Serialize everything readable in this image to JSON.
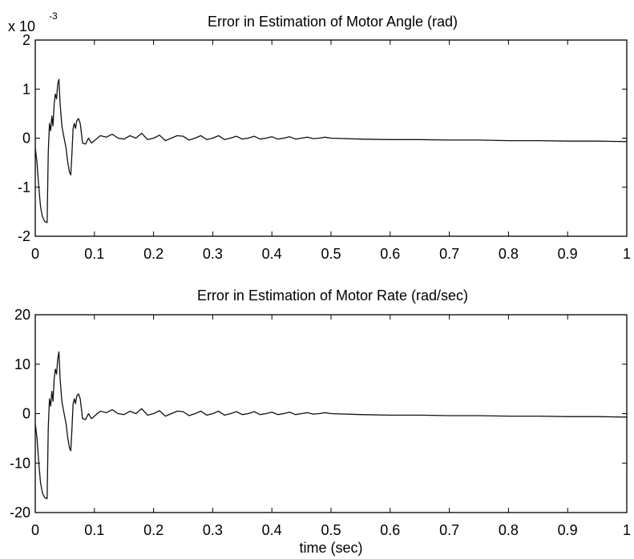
{
  "chart_data": [
    {
      "type": "line",
      "title": "Error in Estimation of Motor Angle (rad)",
      "xlabel": "",
      "ylabel": "",
      "y_multiplier": {
        "base": "x 10",
        "exponent": "-3"
      },
      "xlim": [
        0,
        1
      ],
      "ylim": [
        -2,
        2
      ],
      "xticks": [
        "0",
        "0.1",
        "0.2",
        "0.3",
        "0.4",
        "0.5",
        "0.6",
        "0.7",
        "0.8",
        "0.9",
        "1"
      ],
      "yticks": [
        "-2",
        "-1",
        "0",
        "1",
        "2"
      ],
      "grid": false,
      "series": [
        {
          "x": [
            0,
            0.003,
            0.006,
            0.009,
            0.012,
            0.016,
            0.02,
            0.022,
            0.024,
            0.026,
            0.028,
            0.03,
            0.032,
            0.034,
            0.036,
            0.038,
            0.04,
            0.042,
            0.045,
            0.048,
            0.052,
            0.055,
            0.058,
            0.06,
            0.062,
            0.064,
            0.066,
            0.068,
            0.07,
            0.073,
            0.076,
            0.08,
            0.085,
            0.09,
            0.095,
            0.1,
            0.11,
            0.12,
            0.13,
            0.14,
            0.15,
            0.16,
            0.17,
            0.18,
            0.19,
            0.2,
            0.21,
            0.22,
            0.23,
            0.24,
            0.25,
            0.26,
            0.27,
            0.28,
            0.29,
            0.3,
            0.31,
            0.32,
            0.33,
            0.34,
            0.35,
            0.36,
            0.37,
            0.38,
            0.39,
            0.4,
            0.41,
            0.42,
            0.43,
            0.44,
            0.45,
            0.46,
            0.47,
            0.48,
            0.49,
            0.5,
            0.55,
            0.6,
            0.65,
            0.7,
            0.75,
            0.8,
            0.85,
            0.9,
            0.95,
            1.0
          ],
          "y": [
            -0.2,
            -0.5,
            -1.0,
            -1.4,
            -1.6,
            -1.7,
            -1.72,
            -0.3,
            0.3,
            0.15,
            0.45,
            0.25,
            0.7,
            0.9,
            0.8,
            1.1,
            1.2,
            0.7,
            0.25,
            0.05,
            -0.2,
            -0.5,
            -0.7,
            -0.75,
            -0.3,
            0.2,
            0.3,
            0.2,
            0.35,
            0.4,
            0.3,
            -0.1,
            -0.12,
            0.0,
            -0.1,
            -0.05,
            0.05,
            0.02,
            0.08,
            0.0,
            -0.02,
            0.05,
            0.0,
            0.1,
            -0.03,
            0.0,
            0.06,
            -0.05,
            0.0,
            0.05,
            0.04,
            -0.04,
            0.0,
            0.05,
            -0.03,
            0.0,
            0.05,
            -0.03,
            0.0,
            0.04,
            -0.02,
            0.0,
            0.04,
            -0.02,
            0.0,
            0.03,
            -0.02,
            0.0,
            0.03,
            -0.02,
            0.0,
            0.02,
            -0.01,
            0.0,
            0.02,
            0.0,
            -0.02,
            -0.03,
            -0.03,
            -0.04,
            -0.04,
            -0.05,
            -0.05,
            -0.06,
            -0.06,
            -0.07
          ]
        }
      ]
    },
    {
      "type": "line",
      "title": "Error in Estimation of Motor Rate (rad/sec)",
      "xlabel": "time (sec)",
      "ylabel": "",
      "xlim": [
        0,
        1
      ],
      "ylim": [
        -20,
        20
      ],
      "xticks": [
        "0",
        "0.1",
        "0.2",
        "0.3",
        "0.4",
        "0.5",
        "0.6",
        "0.7",
        "0.8",
        "0.9",
        "1"
      ],
      "yticks": [
        "-20",
        "-10",
        "0",
        "10",
        "20"
      ],
      "grid": false,
      "series": [
        {
          "x": [
            0,
            0.003,
            0.006,
            0.009,
            0.012,
            0.016,
            0.02,
            0.022,
            0.024,
            0.026,
            0.028,
            0.03,
            0.032,
            0.034,
            0.036,
            0.038,
            0.04,
            0.042,
            0.045,
            0.048,
            0.052,
            0.055,
            0.058,
            0.06,
            0.062,
            0.064,
            0.066,
            0.068,
            0.07,
            0.073,
            0.076,
            0.08,
            0.085,
            0.09,
            0.095,
            0.1,
            0.11,
            0.12,
            0.13,
            0.14,
            0.15,
            0.16,
            0.17,
            0.18,
            0.19,
            0.2,
            0.21,
            0.22,
            0.23,
            0.24,
            0.25,
            0.26,
            0.27,
            0.28,
            0.29,
            0.3,
            0.31,
            0.32,
            0.33,
            0.34,
            0.35,
            0.36,
            0.37,
            0.38,
            0.39,
            0.4,
            0.41,
            0.42,
            0.43,
            0.44,
            0.45,
            0.46,
            0.47,
            0.48,
            0.49,
            0.5,
            0.55,
            0.6,
            0.65,
            0.7,
            0.75,
            0.8,
            0.85,
            0.9,
            0.95,
            1.0
          ],
          "y": [
            -2,
            -5,
            -10,
            -14,
            -16,
            -17,
            -17.2,
            -3,
            3,
            1.5,
            4.5,
            2.5,
            7,
            9,
            8,
            11,
            12.5,
            7,
            2.5,
            0.5,
            -2,
            -5,
            -7,
            -7.5,
            -3,
            2,
            3,
            2,
            3.5,
            4,
            3,
            -1,
            -1.2,
            0,
            -1,
            -0.5,
            0.5,
            0.2,
            0.8,
            0,
            -0.2,
            0.5,
            0,
            1,
            -0.3,
            0,
            0.6,
            -0.5,
            0,
            0.5,
            0.4,
            -0.4,
            0,
            0.5,
            -0.3,
            0,
            0.5,
            -0.3,
            0,
            0.4,
            -0.2,
            0,
            0.4,
            -0.2,
            0,
            0.3,
            -0.2,
            0,
            0.3,
            -0.2,
            0,
            0.2,
            -0.1,
            0,
            0.2,
            0,
            -0.2,
            -0.3,
            -0.3,
            -0.4,
            -0.4,
            -0.5,
            -0.5,
            -0.6,
            -0.6,
            -0.7
          ]
        }
      ]
    }
  ]
}
